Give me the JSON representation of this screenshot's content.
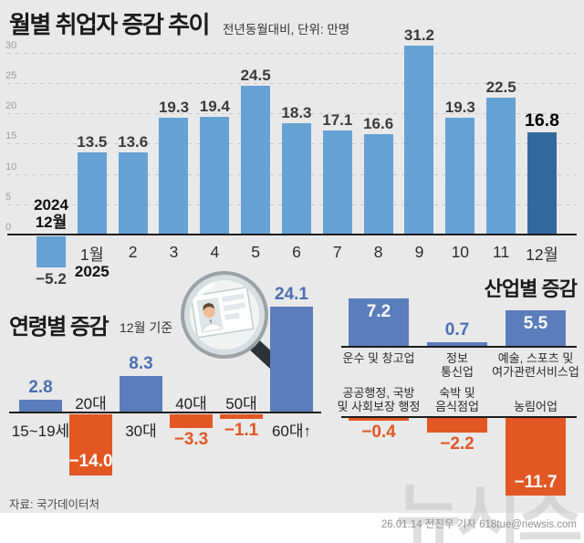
{
  "header": {
    "title": "월별 취업자 증감 추이",
    "subtitle": "전년동월대비, 단위: 만명"
  },
  "chart_data": [
    {
      "id": "monthly",
      "type": "bar",
      "title": "월별 취업자 증감 추이",
      "comparison": "전년동월대비",
      "unit": "만명",
      "first_bar_label_lines": [
        "2024",
        "12월"
      ],
      "month_labels": [
        "1월",
        "2",
        "3",
        "4",
        "5",
        "6",
        "7",
        "8",
        "9",
        "10",
        "11",
        "12월"
      ],
      "year_label": "2025",
      "values": [
        -5.2,
        13.5,
        13.6,
        19.3,
        19.4,
        24.5,
        18.3,
        17.1,
        16.6,
        31.2,
        19.3,
        22.5,
        16.8
      ],
      "highlight_last": true,
      "yticks": [
        0,
        5,
        10,
        15,
        20,
        25,
        30
      ],
      "ylim": [
        -8,
        32
      ],
      "grid": "dashed"
    },
    {
      "id": "age",
      "type": "bar",
      "title": "연령별 증감",
      "subtitle": "12월 기준",
      "categories": [
        "15~19세",
        "20대",
        "30대",
        "40대",
        "50대",
        "60대↑"
      ],
      "values": [
        2.8,
        -14.0,
        8.3,
        -3.3,
        -1.1,
        24.1
      ]
    },
    {
      "id": "industry",
      "type": "bar",
      "title": "산업별 증감",
      "rows": [
        {
          "category_lines": [
            [
              "운수 및 창고업"
            ],
            [
              "정보",
              "통신업"
            ],
            [
              "예술, 스포츠 및",
              "여가관련서비스업"
            ]
          ],
          "values": [
            7.2,
            0.7,
            5.5
          ]
        },
        {
          "category_lines": [
            [
              "공공행정, 국방",
              "및 사회보장 행정"
            ],
            [
              "숙박 및",
              "음식점업"
            ],
            [
              "농림어업"
            ]
          ],
          "values": [
            -0.4,
            -2.2,
            -11.7
          ]
        }
      ]
    }
  ],
  "colors": {
    "background": "#e9e9e9",
    "bar_light_blue": "#66a1d4",
    "bar_dark_blue": "#33689c",
    "bar_blue": "#5b7dbb",
    "bar_orange": "#e25724",
    "value_dark": "#3b3b3b",
    "value_blue": "#4a6fb2",
    "value_orange": "#e25724",
    "axis": "#1d1d1d",
    "grid": "#c9c9c9"
  },
  "illustration": {
    "name": "magnifier-idcard-icon"
  },
  "watermark": "뉴시스",
  "footer": {
    "source": "자료: 국가데이터처",
    "byline": "26.01.14 전진우 기자 618tue@newsis.com"
  }
}
